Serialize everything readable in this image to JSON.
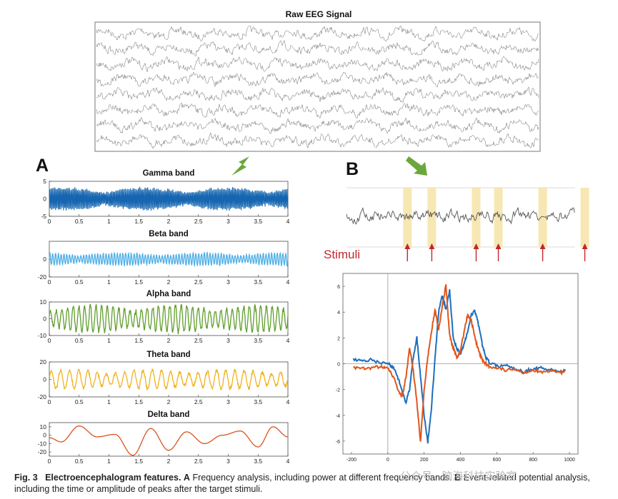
{
  "panel_a_label": "A",
  "panel_b_label": "B",
  "stimuli_label": "Stimuli",
  "caption": {
    "fig": "Fig. 3",
    "title": "Electroencephalogram features.",
    "a_label": "A",
    "a_text": "Frequency analysis, including power at different frequency bands.",
    "b_label": "B",
    "b_text": "Event-related potential analysis, including the time or amplitude of peaks after the target stimuli."
  },
  "watermark": "公众号 · 脑海科技实验室",
  "colors": {
    "gamma": "#1565b0",
    "beta": "#4daee6",
    "alpha": "#5f9e2a",
    "theta": "#f0b31f",
    "delta": "#d9531e",
    "erp_blue": "#1d6fbd",
    "erp_orange": "#e0561c",
    "highlight": "#f6e3a6",
    "arrow_green": "#6aa83a",
    "stim_arrow": "#c0282b"
  },
  "chart_data": [
    {
      "type": "line",
      "title": "Raw EEG Signal",
      "channels": 8,
      "xticks": [],
      "yticks": []
    },
    {
      "type": "line",
      "title": "Gamma band",
      "xlim": [
        0,
        4
      ],
      "ylim": [
        -5,
        5
      ],
      "xticks": [
        "0",
        "0.5",
        "1",
        "1.5",
        "2",
        "2.5",
        "3",
        "3.5",
        "4"
      ],
      "yticks": [
        "5",
        "0",
        "-5"
      ],
      "ytick_values": [
        5,
        0,
        -5
      ],
      "amplitude": 3.0,
      "cycles": 180
    },
    {
      "type": "line",
      "title": "Beta band",
      "xlim": [
        0,
        4
      ],
      "ylim": [
        -20,
        20
      ],
      "xticks": [
        "0",
        "0.5",
        "1",
        "1.5",
        "2",
        "2.5",
        "3",
        "3.5",
        "4"
      ],
      "yticks": [
        "0",
        "-20"
      ],
      "ytick_values": [
        0,
        -20
      ],
      "amplitude": 7,
      "cycles": 85
    },
    {
      "type": "line",
      "title": "Alpha band",
      "xlim": [
        0,
        4
      ],
      "ylim": [
        -10,
        10
      ],
      "xticks": [
        "0",
        "0.5",
        "1",
        "1.5",
        "2",
        "2.5",
        "3",
        "3.5",
        "4"
      ],
      "yticks": [
        "10",
        "0",
        "-10"
      ],
      "ytick_values": [
        10,
        0,
        -10
      ],
      "amplitude": 8,
      "cycles": 42
    },
    {
      "type": "line",
      "title": "Theta band",
      "xlim": [
        0,
        4
      ],
      "ylim": [
        -20,
        20
      ],
      "xticks": [
        "0",
        "0.5",
        "1",
        "1.5",
        "2",
        "2.5",
        "3",
        "3.5",
        "4"
      ],
      "yticks": [
        "20",
        "0",
        "-20"
      ],
      "ytick_values": [
        20,
        0,
        -20
      ],
      "amplitude": 11,
      "cycles": 26
    },
    {
      "type": "line",
      "title": "Delta band",
      "xlim": [
        0,
        4
      ],
      "ylim": [
        -25,
        15
      ],
      "xticks": [
        "0",
        "0.5",
        "1",
        "1.5",
        "2",
        "2.5",
        "3",
        "3.5",
        "4"
      ],
      "yticks": [
        "10",
        "0",
        "-10",
        "-20"
      ],
      "ytick_values": [
        10,
        0,
        -10,
        -20
      ],
      "x": [
        0,
        0.2,
        0.5,
        0.8,
        1.1,
        1.4,
        1.7,
        2.0,
        2.3,
        2.6,
        2.9,
        3.2,
        3.5,
        3.75,
        4.0
      ],
      "y": [
        -3,
        -8,
        11,
        -2,
        1,
        -24,
        8,
        -18,
        4,
        -10,
        0,
        5,
        -14,
        10,
        -2
      ]
    },
    {
      "type": "line",
      "title": "",
      "stimulus_times": [
        0.12,
        0.23,
        0.43,
        0.53,
        0.73,
        0.92
      ],
      "note": "raw trace with stimulus-locked highlight windows"
    },
    {
      "type": "line",
      "title": "",
      "xlim": [
        -200,
        1000
      ],
      "ylim": [
        -7,
        7
      ],
      "xticks": [
        "-200",
        "0",
        "200",
        "400",
        "600",
        "800",
        "1000"
      ],
      "xtick_values": [
        -200,
        0,
        200,
        400,
        600,
        800,
        1000
      ],
      "yticks": [
        "6",
        "4",
        "2",
        "0",
        "-2",
        "-4",
        "-6"
      ],
      "ytick_values": [
        6,
        4,
        2,
        0,
        -2,
        -4,
        -6
      ],
      "series": [
        {
          "name": "blue",
          "x": [
            -190,
            -140,
            -90,
            -40,
            0,
            30,
            60,
            80,
            100,
            120,
            140,
            160,
            180,
            200,
            220,
            240,
            260,
            280,
            300,
            320,
            340,
            360,
            380,
            400,
            420,
            440,
            460,
            480,
            500,
            520,
            540,
            560,
            600,
            650,
            700,
            750,
            800,
            850,
            900,
            950,
            980
          ],
          "y": [
            0.3,
            0.2,
            0.3,
            0.1,
            0,
            -0.3,
            -1.2,
            -2.2,
            -3.0,
            -2.0,
            0.5,
            2.0,
            -1.0,
            -4.0,
            -6.1,
            -3.5,
            0.5,
            4.0,
            5.3,
            4.2,
            5.7,
            2.0,
            1.2,
            0.8,
            1.5,
            2.5,
            3.8,
            4.1,
            3.0,
            1.5,
            0.5,
            0.1,
            -0.2,
            -0.1,
            -0.4,
            -0.6,
            -0.4,
            -0.3,
            -0.5,
            -0.6,
            -0.5
          ]
        },
        {
          "name": "orange",
          "x": [
            -190,
            -140,
            -90,
            -40,
            0,
            30,
            60,
            80,
            100,
            120,
            140,
            160,
            180,
            200,
            220,
            240,
            260,
            280,
            300,
            320,
            340,
            360,
            380,
            400,
            420,
            440,
            460,
            480,
            500,
            520,
            540,
            560,
            600,
            650,
            700,
            750,
            800,
            850,
            900,
            950,
            980
          ],
          "y": [
            -0.3,
            -0.4,
            -0.3,
            -0.2,
            -0.3,
            -1.0,
            -2.1,
            -2.6,
            -1.0,
            1.3,
            -0.5,
            -3.0,
            -6.0,
            -2.0,
            0.5,
            2.5,
            4.2,
            2.6,
            4.5,
            6.1,
            2.2,
            1.2,
            0.5,
            1.0,
            2.5,
            3.8,
            3.3,
            2.0,
            1.0,
            0.3,
            0.0,
            -0.2,
            -0.3,
            -0.5,
            -0.4,
            -0.7,
            -0.5,
            -0.6,
            -0.5,
            -0.7,
            -0.6
          ]
        }
      ]
    }
  ]
}
